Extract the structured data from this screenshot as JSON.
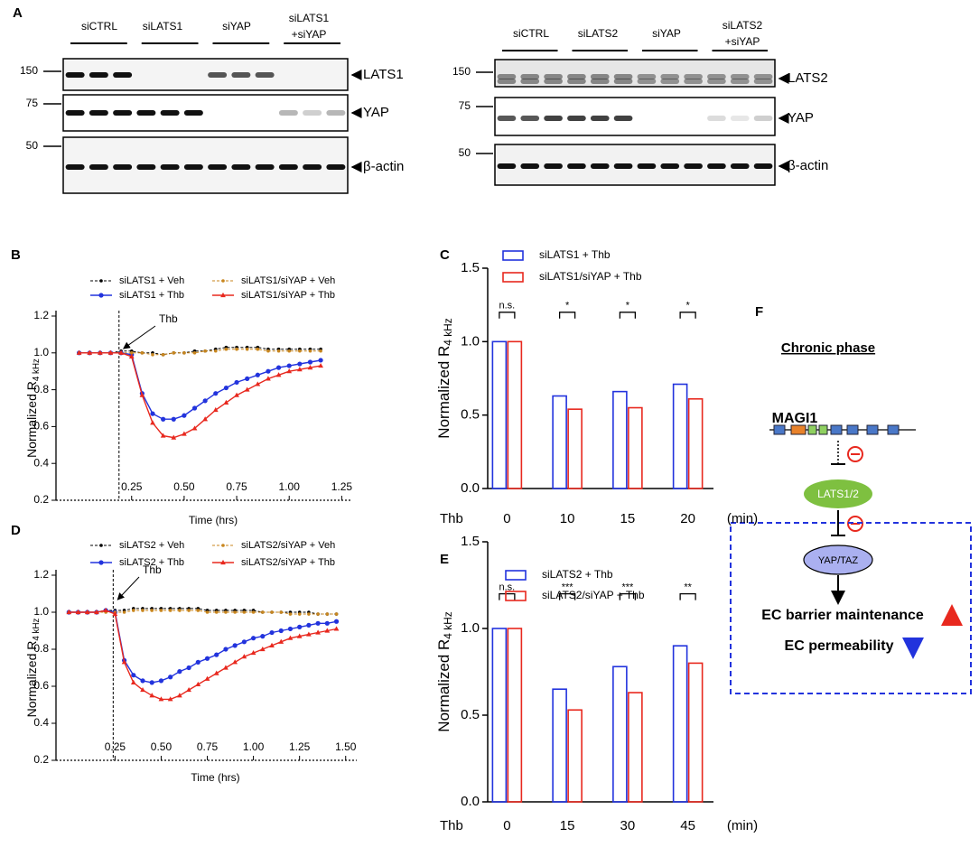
{
  "blots": [
    {
      "panel": "A",
      "groups": [
        [
          "siCTRL"
        ],
        [
          "siLATS1"
        ],
        [
          "siYAP"
        ],
        [
          "siLATS1",
          "+siYAP"
        ]
      ],
      "markers": [
        "150",
        "75",
        "50"
      ],
      "proteins": [
        "LATS1",
        "YAP",
        "β-actin"
      ]
    },
    {
      "groups": [
        [
          "siCTRL"
        ],
        [
          "siLATS2"
        ],
        [
          "siYAP"
        ],
        [
          "siLATS2",
          "+siYAP"
        ]
      ],
      "markers": [
        "150",
        "75",
        "50"
      ],
      "proteins": [
        "LATS2",
        "YAP",
        "β-actin"
      ]
    }
  ],
  "chart_data": [
    {
      "type": "line",
      "panel": "B",
      "xlabel": "Time (hrs)",
      "ylabel": "Normalized R",
      "ylabel_sub": "4 kHz",
      "annotation": {
        "text": "Thb",
        "x": 0.19
      },
      "x": [
        0,
        0.05,
        0.1,
        0.15,
        0.2,
        0.25,
        0.3,
        0.35,
        0.4,
        0.45,
        0.5,
        0.55,
        0.6,
        0.65,
        0.7,
        0.75,
        0.8,
        0.85,
        0.9,
        0.95,
        1.0,
        1.05,
        1.1,
        1.15
      ],
      "series": [
        {
          "name": "siLATS1 + Veh",
          "color": "#000000",
          "dashed": true,
          "marker": "circle",
          "values": [
            1,
            1,
            1,
            1,
            1.01,
            1.01,
            1.0,
            1.0,
            0.99,
            1.0,
            1.0,
            1.01,
            1.01,
            1.02,
            1.03,
            1.03,
            1.03,
            1.03,
            1.02,
            1.02,
            1.02,
            1.02,
            1.02,
            1.02
          ]
        },
        {
          "name": "siLATS1 + Thb",
          "color": "#2233dd",
          "dashed": false,
          "marker": "circle",
          "values": [
            1,
            1,
            1,
            1,
            1,
            0.99,
            0.78,
            0.67,
            0.64,
            0.64,
            0.66,
            0.7,
            0.74,
            0.78,
            0.81,
            0.84,
            0.86,
            0.88,
            0.9,
            0.92,
            0.93,
            0.94,
            0.95,
            0.96
          ]
        },
        {
          "name": "siLATS1/siYAP + Veh",
          "color": "#c8861e",
          "dashed": true,
          "marker": "circle",
          "values": [
            1,
            1,
            1,
            1,
            1,
            1,
            1,
            0.99,
            0.99,
            1.0,
            1.0,
            1.0,
            1.01,
            1.01,
            1.02,
            1.02,
            1.02,
            1.02,
            1.01,
            1.01,
            1.01,
            1.01,
            1.01,
            1.01
          ]
        },
        {
          "name": "siLATS1/siYAP + Thb",
          "color": "#e8281e",
          "dashed": false,
          "marker": "triangle",
          "values": [
            1,
            1,
            1,
            1,
            1,
            0.98,
            0.77,
            0.62,
            0.55,
            0.54,
            0.56,
            0.59,
            0.64,
            0.69,
            0.73,
            0.77,
            0.8,
            0.83,
            0.86,
            0.88,
            0.9,
            0.91,
            0.92,
            0.93
          ]
        }
      ],
      "xlim": [
        -0.11,
        1.3
      ],
      "xticks": [
        0.25,
        {
          "value": 0.5,
          "label": "0.50"
        },
        0.75,
        {
          "value": 1,
          "label": "1.00"
        },
        1.25
      ],
      "ylim": [
        0.2,
        1.2
      ],
      "yticks": [
        0.2,
        0.4,
        0.6,
        0.8,
        {
          "value": 1,
          "label": "1.0"
        },
        1.2
      ]
    },
    {
      "type": "bar",
      "panel": "C",
      "xlabel": "Thb",
      "xunit": "(min)",
      "ylabel": "Normalized R",
      "ylabel_sub": "4 kHz",
      "categories": [
        "0",
        "10",
        "15",
        "20"
      ],
      "series": [
        {
          "name": "siLATS1 + Thb",
          "color": "#2233dd",
          "values": [
            1.0,
            0.63,
            0.66,
            0.71
          ]
        },
        {
          "name": "siLATS1/siYAP + Thb",
          "color": "#e8281e",
          "values": [
            1.0,
            0.54,
            0.55,
            0.61
          ]
        }
      ],
      "significance": [
        "n.s.",
        "*",
        "*",
        "*"
      ],
      "ylim": [
        0,
        1.5
      ],
      "yticks": [
        {
          "value": 0,
          "label": "0.0"
        },
        0.5,
        {
          "value": 1,
          "label": "1.0"
        },
        1.5
      ]
    },
    {
      "type": "line",
      "panel": "D",
      "xlabel": "Time (hrs)",
      "ylabel": "Normalized R",
      "ylabel_sub": "4 kHz",
      "annotation": {
        "text": "Thb",
        "x": 0.24
      },
      "x": [
        0,
        0.05,
        0.1,
        0.15,
        0.2,
        0.25,
        0.3,
        0.35,
        0.4,
        0.45,
        0.5,
        0.55,
        0.6,
        0.65,
        0.7,
        0.75,
        0.8,
        0.85,
        0.9,
        0.95,
        1.0,
        1.05,
        1.1,
        1.15,
        1.2,
        1.25,
        1.3,
        1.35,
        1.4,
        1.45
      ],
      "series": [
        {
          "name": "siLATS2 + Veh",
          "color": "#000000",
          "dashed": true,
          "marker": "circle",
          "values": [
            1,
            1,
            1,
            1,
            1.01,
            1.01,
            1.01,
            1.02,
            1.02,
            1.02,
            1.02,
            1.02,
            1.02,
            1.02,
            1.02,
            1.01,
            1.01,
            1.01,
            1.01,
            1.01,
            1.01,
            1.0,
            1.0,
            1.0,
            1.0,
            1.0,
            1.0,
            0.99,
            0.99,
            0.99
          ]
        },
        {
          "name": "siLATS2 + Thb",
          "color": "#2233dd",
          "dashed": false,
          "marker": "circle",
          "values": [
            1,
            1,
            1,
            1,
            1.01,
            1.0,
            0.74,
            0.66,
            0.63,
            0.62,
            0.63,
            0.65,
            0.68,
            0.7,
            0.73,
            0.75,
            0.77,
            0.8,
            0.82,
            0.84,
            0.86,
            0.87,
            0.89,
            0.9,
            0.91,
            0.92,
            0.93,
            0.94,
            0.94,
            0.95
          ]
        },
        {
          "name": "siLATS2/siYAP + Veh",
          "color": "#c8861e",
          "dashed": true,
          "marker": "circle",
          "values": [
            1,
            1,
            1,
            1,
            1,
            1,
            1,
            1.01,
            1.01,
            1.01,
            1.01,
            1.01,
            1.01,
            1.01,
            1.01,
            1.0,
            1.0,
            1.0,
            1.0,
            1.0,
            1.0,
            1.0,
            1.0,
            1.0,
            0.99,
            0.99,
            0.99,
            0.99,
            0.99,
            0.99
          ]
        },
        {
          "name": "siLATS2/siYAP + Thb",
          "color": "#e8281e",
          "dashed": false,
          "marker": "triangle",
          "values": [
            1,
            1,
            1,
            1,
            1.01,
            0.99,
            0.73,
            0.62,
            0.58,
            0.55,
            0.53,
            0.53,
            0.55,
            0.58,
            0.61,
            0.64,
            0.67,
            0.7,
            0.73,
            0.76,
            0.78,
            0.8,
            0.82,
            0.84,
            0.86,
            0.87,
            0.88,
            0.89,
            0.9,
            0.91
          ]
        }
      ],
      "xlim": [
        -0.07,
        1.56
      ],
      "xticks": [
        0.25,
        {
          "value": 0.5,
          "label": "0.50"
        },
        0.75,
        {
          "value": 1,
          "label": "1.00"
        },
        1.25,
        {
          "value": 1.5,
          "label": "1.50"
        }
      ],
      "ylim": [
        0.2,
        1.2
      ],
      "yticks": [
        0.2,
        0.4,
        0.6,
        0.8,
        {
          "value": 1,
          "label": "1.0"
        },
        1.2
      ]
    },
    {
      "type": "bar",
      "panel": "E",
      "xlabel": "Thb",
      "xunit": "(min)",
      "ylabel": "Normalized R",
      "ylabel_sub": "4 kHz",
      "categories": [
        "0",
        "15",
        "30",
        "45"
      ],
      "series": [
        {
          "name": "siLATS2 + Thb",
          "color": "#2233dd",
          "values": [
            1.0,
            0.65,
            0.78,
            0.9
          ]
        },
        {
          "name": "siLATS2/siYAP + Thb",
          "color": "#e8281e",
          "values": [
            1.0,
            0.53,
            0.63,
            0.8
          ]
        }
      ],
      "significance": [
        "n.s.",
        "***",
        "***",
        "**"
      ],
      "ylim": [
        0,
        1.5
      ],
      "yticks": [
        {
          "value": 0,
          "label": "0.0"
        },
        0.5,
        {
          "value": 1,
          "label": "1.0"
        },
        1.5
      ]
    }
  ],
  "diagram": {
    "panel": "F",
    "title": "Chronic phase",
    "gene": "MAGI1",
    "kinase": "LATS1/2",
    "effector": "YAP/TAZ",
    "outcomes": [
      "EC barrier maintenance",
      "EC permeability"
    ]
  }
}
